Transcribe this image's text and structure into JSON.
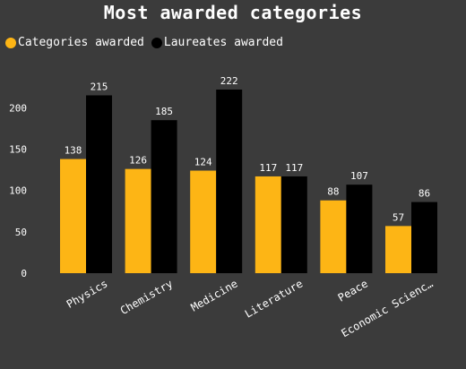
{
  "chart_data": {
    "type": "bar",
    "title": "Most awarded categories",
    "categories": [
      "Physics",
      "Chemistry",
      "Medicine",
      "Literature",
      "Peace",
      "Economic Scienc…"
    ],
    "series": [
      {
        "name": "Categories awarded",
        "color": "#fdb515",
        "values": [
          138,
          126,
          124,
          117,
          88,
          57
        ]
      },
      {
        "name": "Laureates awarded",
        "color": "#000000",
        "values": [
          215,
          185,
          222,
          117,
          107,
          86
        ]
      }
    ],
    "yticks": [
      0,
      50,
      100,
      150,
      200
    ],
    "ylim": [
      0,
      222
    ],
    "xlabel": "",
    "ylabel": "",
    "legend_position": "top-left",
    "grid": false
  },
  "colors": {
    "background": "#3b3b3b",
    "text": "#ffffff"
  }
}
